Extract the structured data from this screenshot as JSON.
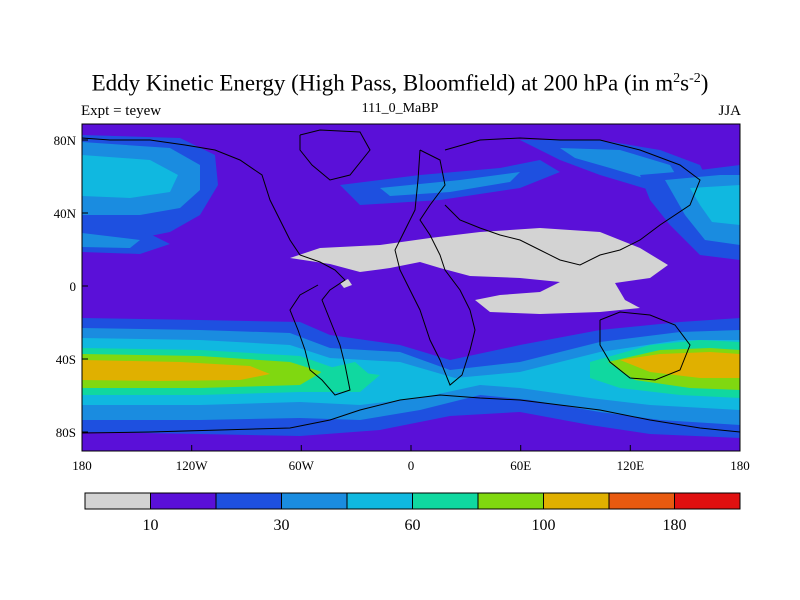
{
  "title": {
    "main": "Eddy Kinetic Energy (High Pass, Bloomfield) at 200 hPa (in m",
    "sup1": "2",
    "mid": "s",
    "sup2": "-2",
    "end": ")"
  },
  "subtitle": "111_0_MaBP",
  "expt_label": "Expt = teyew",
  "season": "JJA",
  "x_ticks": [
    "180",
    "120W",
    "60W",
    "0",
    "60E",
    "120E",
    "180"
  ],
  "y_ticks": [
    "80N",
    "40N",
    "0",
    "40S",
    "80S"
  ],
  "colorbar": {
    "labels": [
      "10",
      "30",
      "60",
      "100",
      "180"
    ],
    "colors": [
      "#d3d3d3",
      "#5a10d8",
      "#1e50e0",
      "#1a8ce0",
      "#10b8e0",
      "#10d8a0",
      "#80d810",
      "#e0b000",
      "#e85a10",
      "#e01010"
    ]
  },
  "map_colors": {
    "level0": "#d3d3d3",
    "level1": "#5a10d8",
    "level2": "#1e50e0",
    "level3": "#1a8ce0",
    "level4": "#10b8e0",
    "level5": "#10d8a0",
    "level6": "#80d810",
    "level7": "#e0b000"
  }
}
